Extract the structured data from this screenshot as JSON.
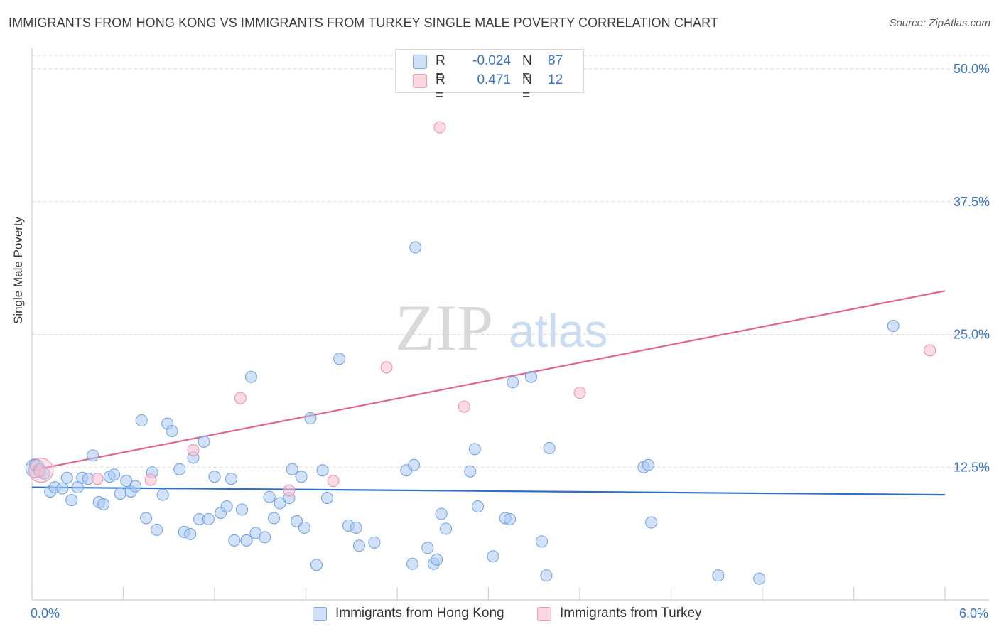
{
  "title": "IMMIGRANTS FROM HONG KONG VS IMMIGRANTS FROM TURKEY SINGLE MALE POVERTY CORRELATION CHART",
  "source": "Source: ZipAtlas.com",
  "watermark": {
    "zip": "ZIP",
    "atlas": "atlas"
  },
  "legend_top": {
    "rows": [
      {
        "r_label": "R =",
        "r_value": "-0.024",
        "n_label": "N =",
        "n_value": "87",
        "color": "#a9c8f2"
      },
      {
        "r_label": "R =",
        "r_value": "0.471",
        "n_label": "N =",
        "n_value": "12",
        "color": "#f5b8cb"
      }
    ]
  },
  "legend_bottom": [
    {
      "label": "Immigrants from Hong Kong",
      "color": "#a9c8f2"
    },
    {
      "label": "Immigrants from Turkey",
      "color": "#f5b8cb"
    }
  ],
  "colors": {
    "blue_fill": "#a9c8f2",
    "blue_stroke": "#6f9ede",
    "blue_line": "#2f6fc7",
    "pink_fill": "#f7c2d2",
    "pink_stroke": "#eb8fae",
    "pink_line": "#e0668e",
    "axis_text": "#3a74c4",
    "grid": "#d9d9d9"
  },
  "chart_data": {
    "type": "scatter",
    "title": "IMMIGRANTS FROM HONG KONG VS IMMIGRANTS FROM TURKEY SINGLE MALE POVERTY CORRELATION CHART",
    "xlabel": "",
    "ylabel": "Single Male Poverty",
    "xlim": [
      0,
      6
    ],
    "ylim": [
      0,
      50
    ],
    "x_tick_labels": [
      "0.0%",
      "6.0%"
    ],
    "y_ticks": [
      12.5,
      25,
      37.5,
      50
    ],
    "y_tick_labels": [
      "12.5%",
      "25.0%",
      "37.5%",
      "50.0%"
    ],
    "grid": "horizontal dashed",
    "legend_placement": "top-center and bottom",
    "series": [
      {
        "name": "Immigrants from Hong Kong",
        "trend": {
          "x": [
            0,
            6
          ],
          "y": [
            10.6,
            9.9
          ]
        },
        "points": [
          [
            0.02,
            12.7
          ],
          [
            0.05,
            12.3
          ],
          [
            0.08,
            11.9
          ],
          [
            0.12,
            10.2
          ],
          [
            0.15,
            10.6
          ],
          [
            0.2,
            10.5
          ],
          [
            0.23,
            11.5
          ],
          [
            0.26,
            9.4
          ],
          [
            0.3,
            10.6
          ],
          [
            0.33,
            11.5
          ],
          [
            0.37,
            11.4
          ],
          [
            0.4,
            13.6
          ],
          [
            0.44,
            9.2
          ],
          [
            0.47,
            9.0
          ],
          [
            0.51,
            11.6
          ],
          [
            0.54,
            11.8
          ],
          [
            0.58,
            10.0
          ],
          [
            0.62,
            11.2
          ],
          [
            0.65,
            10.2
          ],
          [
            0.68,
            10.7
          ],
          [
            0.72,
            16.9
          ],
          [
            0.75,
            7.7
          ],
          [
            0.79,
            12.0
          ],
          [
            0.82,
            6.6
          ],
          [
            0.86,
            9.9
          ],
          [
            0.89,
            16.6
          ],
          [
            0.92,
            15.9
          ],
          [
            0.97,
            12.3
          ],
          [
            1.0,
            6.4
          ],
          [
            1.04,
            6.2
          ],
          [
            1.06,
            13.4
          ],
          [
            1.1,
            7.6
          ],
          [
            1.13,
            14.9
          ],
          [
            1.16,
            7.6
          ],
          [
            1.2,
            11.6
          ],
          [
            1.24,
            8.2
          ],
          [
            1.28,
            8.8
          ],
          [
            1.31,
            11.4
          ],
          [
            1.33,
            5.6
          ],
          [
            1.38,
            8.5
          ],
          [
            1.41,
            5.6
          ],
          [
            1.44,
            21.0
          ],
          [
            1.47,
            6.3
          ],
          [
            1.53,
            5.9
          ],
          [
            1.56,
            9.7
          ],
          [
            1.59,
            7.7
          ],
          [
            1.63,
            9.1
          ],
          [
            1.69,
            9.6
          ],
          [
            1.71,
            12.3
          ],
          [
            1.74,
            7.4
          ],
          [
            1.77,
            11.6
          ],
          [
            1.79,
            6.8
          ],
          [
            1.83,
            17.1
          ],
          [
            1.87,
            3.3
          ],
          [
            1.91,
            12.2
          ],
          [
            1.94,
            9.6
          ],
          [
            2.02,
            22.7
          ],
          [
            2.08,
            7.0
          ],
          [
            2.13,
            6.8
          ],
          [
            2.15,
            5.1
          ],
          [
            2.25,
            5.4
          ],
          [
            2.46,
            12.2
          ],
          [
            2.5,
            3.4
          ],
          [
            2.51,
            12.7
          ],
          [
            2.6,
            4.9
          ],
          [
            2.64,
            3.4
          ],
          [
            2.66,
            3.8
          ],
          [
            2.69,
            8.1
          ],
          [
            2.72,
            6.7
          ],
          [
            2.88,
            12.1
          ],
          [
            2.91,
            14.2
          ],
          [
            2.93,
            8.8
          ],
          [
            3.03,
            4.1
          ],
          [
            3.11,
            7.7
          ],
          [
            3.14,
            7.6
          ],
          [
            3.16,
            20.5
          ],
          [
            3.28,
            21.0
          ],
          [
            3.35,
            5.5
          ],
          [
            3.38,
            2.3
          ],
          [
            3.4,
            14.3
          ],
          [
            4.02,
            12.5
          ],
          [
            4.05,
            12.7
          ],
          [
            4.07,
            7.3
          ],
          [
            4.51,
            2.3
          ],
          [
            4.78,
            2.0
          ],
          [
            5.66,
            25.8
          ],
          [
            2.52,
            33.2
          ]
        ]
      },
      {
        "name": "Immigrants from Turkey",
        "trend": {
          "x": [
            0,
            6
          ],
          "y": [
            12.2,
            29.1
          ]
        },
        "points": [
          [
            0.05,
            12.1
          ],
          [
            0.43,
            11.4
          ],
          [
            0.78,
            11.3
          ],
          [
            1.06,
            14.1
          ],
          [
            1.37,
            19.0
          ],
          [
            1.69,
            10.3
          ],
          [
            1.98,
            11.2
          ],
          [
            2.33,
            21.9
          ],
          [
            2.68,
            44.5
          ],
          [
            2.84,
            18.2
          ],
          [
            3.6,
            19.5
          ],
          [
            5.9,
            23.5
          ]
        ]
      }
    ]
  }
}
